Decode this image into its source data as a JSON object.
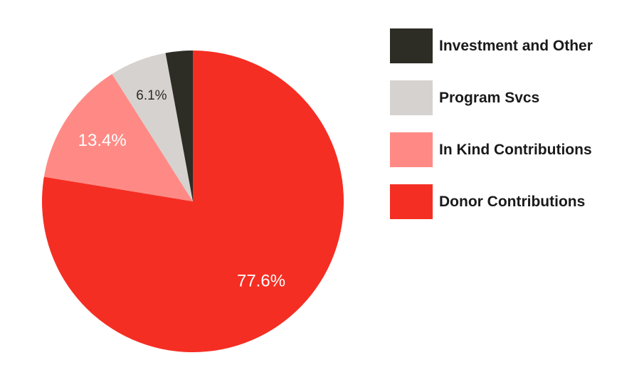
{
  "chart_data": {
    "type": "pie",
    "title": "",
    "start_angle_deg": 0,
    "direction": "clockwise",
    "categories": [
      "Donor Contributions",
      "In Kind Contributions",
      "Program Svcs",
      "Investment and Other"
    ],
    "values": [
      77.6,
      13.4,
      6.1,
      2.9
    ],
    "labels": [
      "77.6%",
      "13.4%",
      "6.1%",
      ""
    ],
    "colors": [
      "#f52e23",
      "#ff8a85",
      "#d6d2cf",
      "#2d2c25"
    ],
    "label_colors": [
      "#ffffff",
      "#ffffff",
      "#2d2c25",
      "#ffffff"
    ],
    "legend_position": "right",
    "legend_order": [
      "Investment and Other",
      "Program Svcs",
      "In Kind Contributions",
      "Donor Contributions"
    ]
  }
}
